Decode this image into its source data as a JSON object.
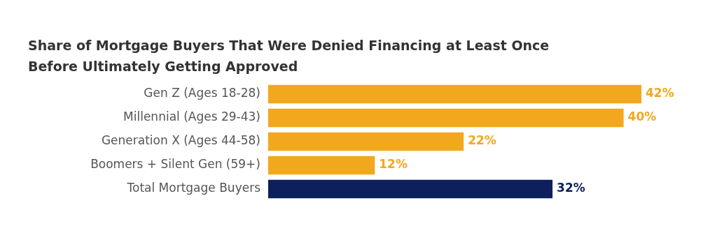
{
  "chart_data": {
    "type": "bar",
    "orientation": "horizontal",
    "title": "Share of Mortgage Buyers That Were Denied Financing at Least Once Before Ultimately Getting Approved",
    "categories": [
      "Gen Z (Ages 18-28)",
      "Millennial (Ages 29-43)",
      "Generation X (Ages 44-58)",
      "Boomers + Silent Gen (59+)",
      "Total Mortgage Buyers"
    ],
    "values": [
      42,
      40,
      22,
      12,
      32
    ],
    "colors": [
      "#f2a81d",
      "#f2a81d",
      "#f2a81d",
      "#f2a81d",
      "#0d1f5c"
    ],
    "value_labels": [
      "42%",
      "40%",
      "22%",
      "12%",
      "32%"
    ],
    "legend": false
  }
}
